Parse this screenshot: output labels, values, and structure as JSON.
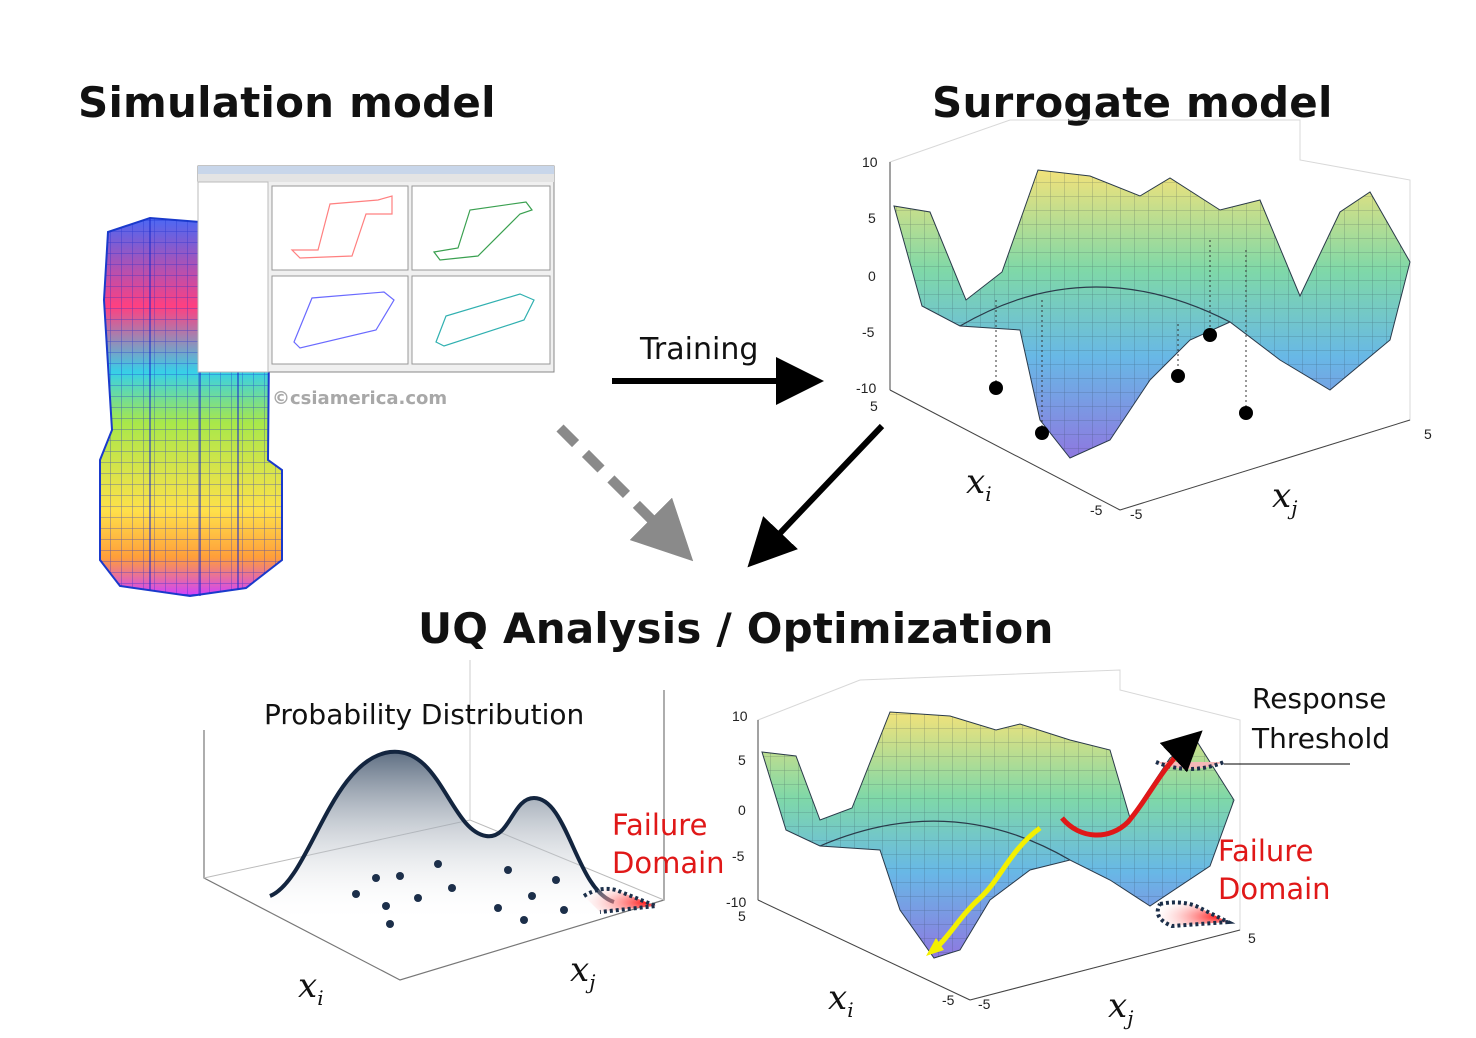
{
  "titles": {
    "simulation": "Simulation model",
    "surrogate": "Surrogate model",
    "uq": "UQ Analysis / Optimization"
  },
  "labels": {
    "training": "Training",
    "watermark": "©csiamerica.com",
    "probability": "Probability Distribution",
    "failure_line1": "Failure",
    "failure_line2": "Domain",
    "response_line1": "Response",
    "response_line2": "Threshold"
  },
  "axes": {
    "xi": "x",
    "xi_sub": "i",
    "xj": "x",
    "xj_sub": "j",
    "z_ticks": [
      "10",
      "5",
      "0",
      "-5",
      "-10"
    ],
    "xi_ticks": [
      "5",
      "-5"
    ],
    "xj_ticks": [
      "-5",
      "5"
    ]
  },
  "colors": {
    "failure_red": "#e01818",
    "distribution_navy": "#1c2f4a",
    "path_red": "#e01818",
    "path_yellow": "#f4f000",
    "dashed_arrow": "#8a8a8a"
  }
}
